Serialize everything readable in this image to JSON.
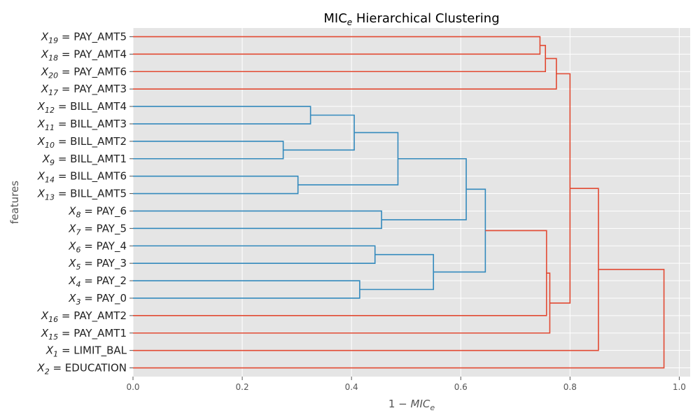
{
  "chart_data": {
    "type": "dendrogram",
    "title": {
      "base": "MIC",
      "sub": "e",
      "rest": " Hierarchical Clustering"
    },
    "xlabel": {
      "prefix": "1 − ",
      "base": "MIC",
      "sub": "e"
    },
    "ylabel": "features",
    "xlim": [
      0,
      1.02
    ],
    "xticks": [
      0.0,
      0.2,
      0.4,
      0.6,
      0.8,
      1.0
    ],
    "xtick_labels": [
      "0.0",
      "0.2",
      "0.4",
      "0.6",
      "0.8",
      "1.0"
    ],
    "grid": true,
    "colors": {
      "cluster_1": "#e24a33",
      "cluster_2": "#348abd",
      "background": "#e5e5e5",
      "grid": "#ffffff"
    },
    "leaves": [
      {
        "sub": "19",
        "feature": "PAY_AMT5"
      },
      {
        "sub": "18",
        "feature": "PAY_AMT4"
      },
      {
        "sub": "20",
        "feature": "PAY_AMT6"
      },
      {
        "sub": "17",
        "feature": "PAY_AMT3"
      },
      {
        "sub": "12",
        "feature": "BILL_AMT4"
      },
      {
        "sub": "11",
        "feature": "BILL_AMT3"
      },
      {
        "sub": "10",
        "feature": "BILL_AMT2"
      },
      {
        "sub": "9",
        "feature": "BILL_AMT1"
      },
      {
        "sub": "14",
        "feature": "BILL_AMT6"
      },
      {
        "sub": "13",
        "feature": "BILL_AMT5"
      },
      {
        "sub": "8",
        "feature": "PAY_6"
      },
      {
        "sub": "7",
        "feature": "PAY_5"
      },
      {
        "sub": "6",
        "feature": "PAY_4"
      },
      {
        "sub": "5",
        "feature": "PAY_3"
      },
      {
        "sub": "4",
        "feature": "PAY_2"
      },
      {
        "sub": "3",
        "feature": "PAY_0"
      },
      {
        "sub": "16",
        "feature": "PAY_AMT2"
      },
      {
        "sub": "15",
        "feature": "PAY_AMT1"
      },
      {
        "sub": "1",
        "feature": "LIMIT_BAL"
      },
      {
        "sub": "2",
        "feature": "EDUCATION"
      }
    ],
    "merges": [
      {
        "id": "m1",
        "a": "L0",
        "b": "L1",
        "height": 0.745,
        "color": "cluster_1"
      },
      {
        "id": "m2",
        "a": "m1",
        "b": "L2",
        "height": 0.755,
        "color": "cluster_1"
      },
      {
        "id": "m3",
        "a": "m2",
        "b": "L3",
        "height": 0.775,
        "color": "cluster_1"
      },
      {
        "id": "m4",
        "a": "L4",
        "b": "L5",
        "height": 0.325,
        "color": "cluster_2"
      },
      {
        "id": "m5",
        "a": "L6",
        "b": "L7",
        "height": 0.275,
        "color": "cluster_2"
      },
      {
        "id": "m6",
        "a": "m4",
        "b": "m5",
        "height": 0.405,
        "color": "cluster_2"
      },
      {
        "id": "m7",
        "a": "L8",
        "b": "L9",
        "height": 0.302,
        "color": "cluster_2"
      },
      {
        "id": "m8",
        "a": "m6",
        "b": "m7",
        "height": 0.485,
        "color": "cluster_2"
      },
      {
        "id": "m9",
        "a": "L10",
        "b": "L11",
        "height": 0.455,
        "color": "cluster_2"
      },
      {
        "id": "m10",
        "a": "m8",
        "b": "m9",
        "height": 0.61,
        "color": "cluster_2"
      },
      {
        "id": "m11",
        "a": "L12",
        "b": "L13",
        "height": 0.443,
        "color": "cluster_2"
      },
      {
        "id": "m12",
        "a": "L14",
        "b": "L15",
        "height": 0.415,
        "color": "cluster_2"
      },
      {
        "id": "m13",
        "a": "m11",
        "b": "m12",
        "height": 0.55,
        "color": "cluster_2"
      },
      {
        "id": "m14",
        "a": "m10",
        "b": "m13",
        "height": 0.645,
        "color": "cluster_2"
      },
      {
        "id": "m15",
        "a": "m14",
        "b": "L16",
        "height": 0.757,
        "color": "cluster_1"
      },
      {
        "id": "m16",
        "a": "m15",
        "b": "L17",
        "height": 0.763,
        "color": "cluster_1"
      },
      {
        "id": "m17",
        "a": "m3",
        "b": "m16",
        "height": 0.8,
        "color": "cluster_1"
      },
      {
        "id": "m18",
        "a": "m17",
        "b": "L18",
        "height": 0.852,
        "color": "cluster_1"
      },
      {
        "id": "m19",
        "a": "m18",
        "b": "L19",
        "height": 0.972,
        "color": "cluster_1"
      }
    ]
  }
}
